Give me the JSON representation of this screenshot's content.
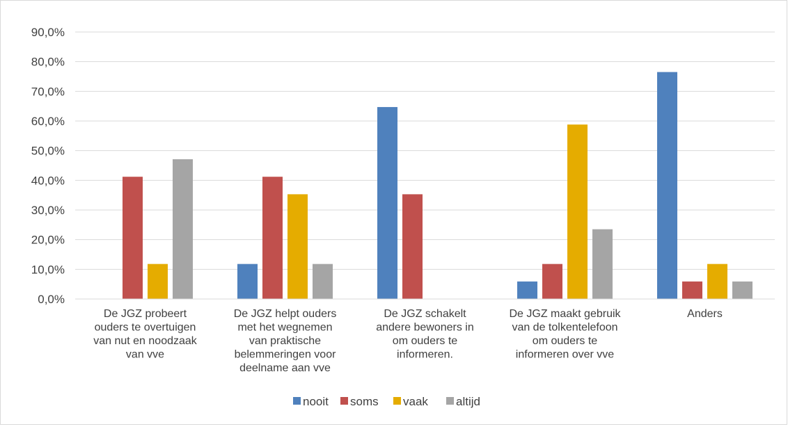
{
  "chart_data": {
    "type": "bar",
    "title": "",
    "xlabel": "",
    "ylabel": "",
    "ylim": [
      0,
      90
    ],
    "y_ticks": [
      "0,0%",
      "10,0%",
      "20,0%",
      "30,0%",
      "40,0%",
      "50,0%",
      "60,0%",
      "70,0%",
      "80,0%",
      "90,0%"
    ],
    "y_tick_values": [
      0,
      10,
      20,
      30,
      40,
      50,
      60,
      70,
      80,
      90
    ],
    "grid": true,
    "legend_position": "bottom",
    "categories": [
      [
        "De JGZ probeert",
        "ouders te overtuigen",
        "van nut en noodzaak",
        "van vve"
      ],
      [
        "De JGZ helpt ouders",
        "met het wegnemen",
        "van praktische",
        "belemmeringen voor",
        "deelname aan vve"
      ],
      [
        "De JGZ schakelt",
        "andere bewoners in",
        "om ouders te",
        "informeren."
      ],
      [
        "De JGZ maakt gebruik",
        "van de tolkentelefoon",
        "om ouders te",
        "informeren over vve"
      ],
      [
        "Anders"
      ]
    ],
    "series": [
      {
        "name": "nooit",
        "color": "#4f81bd",
        "values": [
          0,
          11.8,
          64.7,
          5.9,
          76.5
        ]
      },
      {
        "name": "soms",
        "color": "#c0504d",
        "values": [
          41.2,
          41.2,
          35.3,
          11.8,
          5.9
        ]
      },
      {
        "name": "vaak",
        "color": "#e5ac00",
        "values": [
          11.8,
          35.3,
          0,
          58.8,
          11.8
        ]
      },
      {
        "name": "altijd",
        "color": "#a5a5a5",
        "values": [
          47.1,
          11.8,
          0,
          23.5,
          5.9
        ]
      }
    ]
  }
}
